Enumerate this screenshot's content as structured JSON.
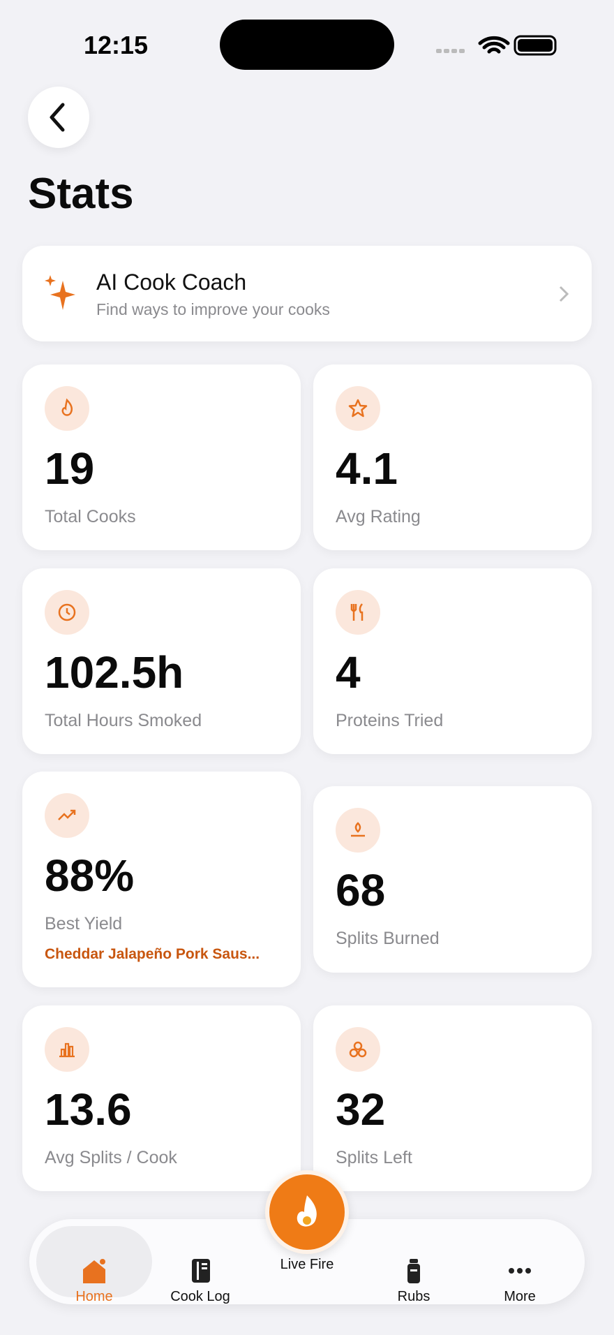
{
  "status_bar": {
    "time": "12:15"
  },
  "header": {
    "title": "Stats"
  },
  "coach": {
    "title": "AI Cook Coach",
    "subtitle": "Find ways to improve your cooks"
  },
  "stats": [
    {
      "value": "19",
      "label": "Total Cooks"
    },
    {
      "value": "4.1",
      "label": "Avg Rating"
    },
    {
      "value": "102.5h",
      "label": "Total Hours Smoked"
    },
    {
      "value": "4",
      "label": "Proteins Tried"
    },
    {
      "value": "88%",
      "label": "Best Yield",
      "detail": "Cheddar Jalapeño Pork Saus..."
    },
    {
      "value": "68",
      "label": "Splits Burned"
    },
    {
      "value": "13.6",
      "label": "Avg Splits / Cook"
    },
    {
      "value": "32",
      "label": "Splits Left"
    }
  ],
  "tabs": [
    "Home",
    "Cook Log",
    "Live Fire",
    "Rubs",
    "More"
  ]
}
